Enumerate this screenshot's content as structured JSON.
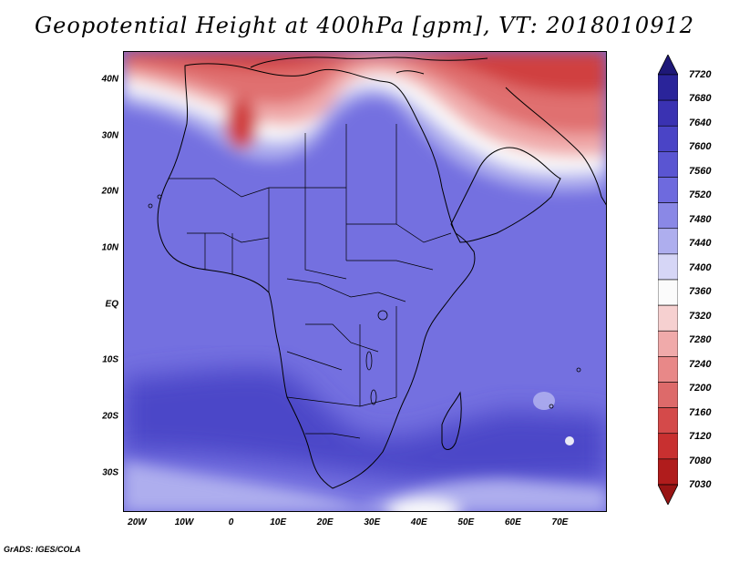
{
  "title": "Geopotential Height at 400hPa [gpm], VT: 2018010912",
  "credit": "GrADS: IGES/COLA",
  "lat_labels": [
    "40N",
    "30N",
    "20N",
    "10N",
    "EQ",
    "10S",
    "20S",
    "30S"
  ],
  "lon_labels": [
    "20W",
    "10W",
    "0",
    "10E",
    "20E",
    "30E",
    "40E",
    "50E",
    "60E",
    "70E"
  ],
  "colorbar": {
    "levels": [
      "7720",
      "7680",
      "7640",
      "7600",
      "7560",
      "7520",
      "7480",
      "7440",
      "7400",
      "7360",
      "7320",
      "7280",
      "7240",
      "7200",
      "7160",
      "7120",
      "7080",
      "7030"
    ],
    "colors": [
      "#1e1878",
      "#2a249a",
      "#3a32b2",
      "#4a44c6",
      "#5a55d2",
      "#6e6ade",
      "#8a88e6",
      "#aeaeee",
      "#d6d6f6",
      "#fbfbfb",
      "#f6d0d0",
      "#f0aaaa",
      "#e88888",
      "#dd6a6a",
      "#d44a4a",
      "#c83030",
      "#b01c1c",
      "#981414"
    ]
  },
  "map": {
    "lon_range": [
      -23,
      80
    ],
    "lat_range": [
      -37,
      45
    ],
    "colors": {
      "ocean_base": "#7a73e0",
      "land_base": "#6660dc",
      "deep": "#4a44c6",
      "light": "#aeaeee",
      "white": "#fbfbfb",
      "red1": "#f0aaaa",
      "red2": "#e07070",
      "red3": "#d04040"
    }
  }
}
